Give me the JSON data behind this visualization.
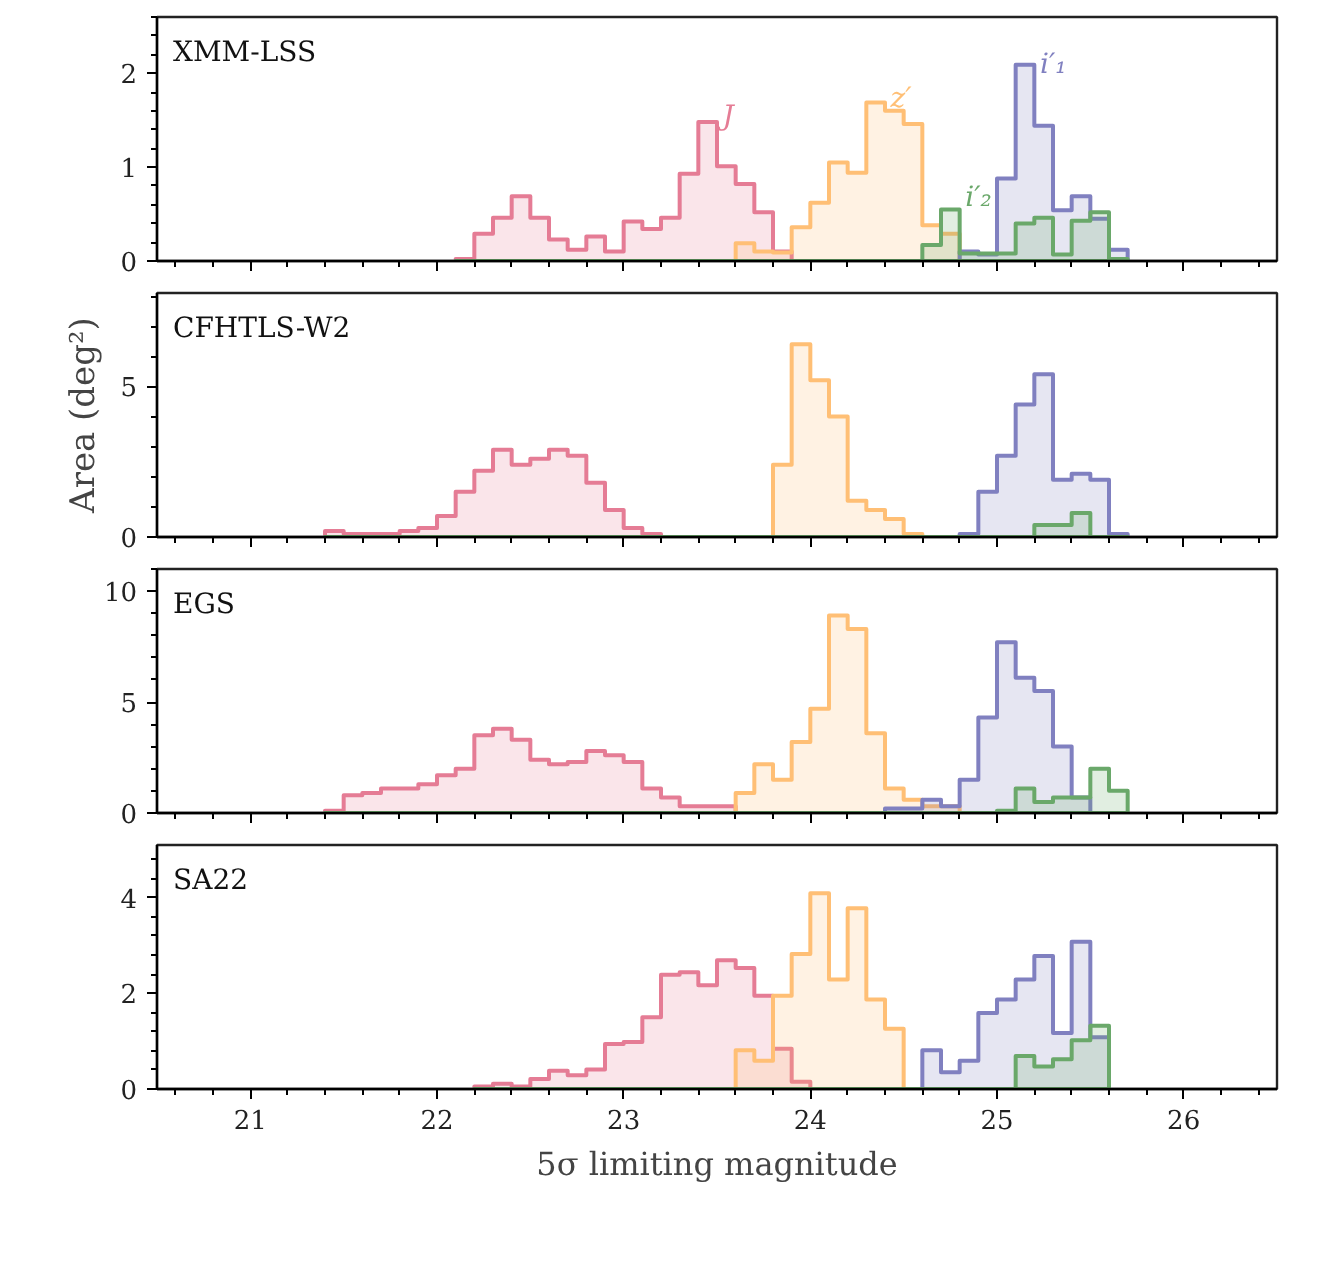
{
  "chart_data": [
    {
      "type": "histogram",
      "title": "XMM-LSS",
      "xlim": [
        20.5,
        26.5
      ],
      "xticks": [
        21,
        22,
        23,
        24,
        25,
        26
      ],
      "ylim": [
        0,
        2.6
      ],
      "yticks": [
        0,
        1,
        2
      ],
      "tick_labels": "y",
      "grid": false,
      "bins": [
        22.1,
        22.2,
        22.3,
        22.4,
        22.5,
        22.6,
        22.7,
        22.8,
        22.9,
        23.0,
        23.1,
        23.2,
        23.3,
        23.4,
        23.5,
        23.6,
        23.7,
        23.8,
        23.9,
        24.0,
        24.1,
        24.2,
        24.3,
        24.4,
        24.5,
        24.6,
        24.7,
        24.8,
        24.9,
        25.0,
        25.1,
        25.2,
        25.3,
        25.4,
        25.5,
        25.6,
        25.7
      ],
      "series": [
        {
          "name": "J",
          "color": "#e57c95",
          "values": [
            0.02,
            0.29,
            0.46,
            0.69,
            0.46,
            0.23,
            0.12,
            0.26,
            0.1,
            0.42,
            0.34,
            0.46,
            0.93,
            1.48,
            1.01,
            0.82,
            0.52,
            0.1,
            0,
            0,
            0,
            0,
            0,
            0,
            0,
            0,
            0,
            0,
            0,
            0,
            0,
            0,
            0,
            0,
            0,
            0
          ]
        },
        {
          "name": "z′",
          "color": "#ffbf75",
          "values": [
            0,
            0,
            0,
            0,
            0,
            0,
            0,
            0,
            0,
            0,
            0,
            0,
            0,
            0,
            0,
            0.19,
            0.1,
            0.09,
            0.36,
            0.62,
            1.05,
            0.94,
            1.69,
            1.6,
            1.46,
            0.38,
            0.29,
            0,
            0,
            0,
            0,
            0,
            0,
            0,
            0,
            0
          ]
        },
        {
          "name": "i′₁",
          "color": "#8080c0",
          "values": [
            0,
            0,
            0,
            0,
            0,
            0,
            0,
            0,
            0,
            0,
            0,
            0,
            0,
            0,
            0,
            0,
            0,
            0,
            0,
            0,
            0,
            0,
            0,
            0,
            0,
            0,
            0,
            0.1,
            0.07,
            0.88,
            2.09,
            1.44,
            0.54,
            0.69,
            0.45,
            0.12
          ]
        },
        {
          "name": "i′₂",
          "color": "#6aa86a",
          "values": [
            0,
            0,
            0,
            0,
            0,
            0,
            0,
            0,
            0,
            0,
            0,
            0,
            0,
            0,
            0,
            0,
            0,
            0,
            0,
            0,
            0,
            0,
            0,
            0,
            0,
            0.17,
            0.55,
            0.08,
            0.08,
            0.08,
            0.4,
            0.46,
            0.07,
            0.43,
            0.52,
            0.02
          ]
        }
      ]
    },
    {
      "type": "histogram",
      "title": "CFHTLS-W2",
      "xlim": [
        20.5,
        26.5
      ],
      "xticks": [
        21,
        22,
        23,
        24,
        25,
        26
      ],
      "ylim": [
        0,
        8.1
      ],
      "yticks": [
        0,
        5
      ],
      "tick_labels": "y",
      "grid": false,
      "ylabel": "Area (deg²)",
      "bins": [
        21.4,
        21.5,
        21.6,
        21.7,
        21.8,
        21.9,
        22.0,
        22.1,
        22.2,
        22.3,
        22.4,
        22.5,
        22.6,
        22.7,
        22.8,
        22.9,
        23.0,
        23.1,
        23.2,
        23.3,
        23.4,
        23.5,
        23.6,
        23.7,
        23.8,
        23.9,
        24.0,
        24.1,
        24.2,
        24.3,
        24.4,
        24.5,
        24.6,
        24.7,
        24.8,
        24.9,
        25.0,
        25.1,
        25.2,
        25.3,
        25.4,
        25.5,
        25.6,
        25.7
      ],
      "series": [
        {
          "color": "#e57c95",
          "values": [
            0.2,
            0.1,
            0.1,
            0.1,
            0.2,
            0.3,
            0.7,
            1.5,
            2.2,
            2.9,
            2.4,
            2.6,
            2.9,
            2.7,
            1.8,
            0.9,
            0.3,
            0.1,
            0,
            0,
            0,
            0,
            0,
            0,
            0,
            0,
            0,
            0,
            0,
            0,
            0,
            0,
            0,
            0,
            0,
            0,
            0,
            0,
            0,
            0,
            0,
            0,
            0
          ]
        },
        {
          "color": "#ffbf75",
          "values": [
            0,
            0,
            0,
            0,
            0,
            0,
            0,
            0,
            0,
            0,
            0,
            0,
            0,
            0,
            0,
            0,
            0,
            0,
            0,
            0,
            0,
            0,
            0,
            0,
            2.4,
            6.4,
            5.2,
            4.0,
            1.2,
            0.9,
            0.6,
            0.1,
            0,
            0,
            0,
            0,
            0,
            0,
            0,
            0,
            0,
            0,
            0
          ]
        },
        {
          "color": "#8080c0",
          "values": [
            0,
            0,
            0,
            0,
            0,
            0,
            0,
            0,
            0,
            0,
            0,
            0,
            0,
            0,
            0,
            0,
            0,
            0,
            0,
            0,
            0,
            0,
            0,
            0,
            0,
            0,
            0,
            0,
            0,
            0,
            0,
            0,
            0,
            0,
            0.1,
            1.5,
            2.7,
            4.4,
            5.4,
            1.9,
            2.1,
            1.9,
            0.1
          ]
        },
        {
          "color": "#6aa86a",
          "values": [
            0,
            0,
            0,
            0,
            0,
            0,
            0,
            0,
            0,
            0,
            0,
            0,
            0,
            0,
            0,
            0,
            0,
            0,
            0,
            0,
            0,
            0,
            0,
            0,
            0,
            0,
            0,
            0,
            0,
            0,
            0,
            0,
            0,
            0,
            0,
            0,
            0,
            0,
            0.4,
            0.4,
            0.8,
            0,
            0
          ]
        }
      ]
    },
    {
      "type": "histogram",
      "title": "EGS",
      "xlim": [
        20.5,
        26.5
      ],
      "xticks": [
        21,
        22,
        23,
        24,
        25,
        26
      ],
      "ylim": [
        0,
        11
      ],
      "yticks": [
        0,
        5,
        10
      ],
      "tick_labels": "y",
      "grid": false,
      "bins": [
        21.4,
        21.5,
        21.6,
        21.7,
        21.8,
        21.9,
        22.0,
        22.1,
        22.2,
        22.3,
        22.4,
        22.5,
        22.6,
        22.7,
        22.8,
        22.9,
        23.0,
        23.1,
        23.2,
        23.3,
        23.4,
        23.5,
        23.6,
        23.7,
        23.8,
        23.9,
        24.0,
        24.1,
        24.2,
        24.3,
        24.4,
        24.5,
        24.6,
        24.7,
        24.8,
        24.9,
        25.0,
        25.1,
        25.2,
        25.3,
        25.4,
        25.5,
        25.6,
        25.7
      ],
      "series": [
        {
          "color": "#e57c95",
          "values": [
            0.1,
            0.8,
            0.9,
            1.1,
            1.1,
            1.3,
            1.7,
            2.0,
            3.5,
            3.8,
            3.3,
            2.4,
            2.2,
            2.3,
            2.8,
            2.6,
            2.3,
            1.1,
            0.7,
            0.3,
            0.3,
            0.3,
            0,
            0,
            0,
            0,
            0,
            0,
            0,
            0,
            0,
            0,
            0,
            0,
            0,
            0,
            0,
            0,
            0,
            0,
            0,
            0,
            0
          ]
        },
        {
          "color": "#ffbf75",
          "values": [
            0,
            0,
            0,
            0,
            0,
            0,
            0,
            0,
            0,
            0,
            0,
            0,
            0,
            0,
            0,
            0,
            0,
            0,
            0,
            0,
            0,
            0,
            0.9,
            2.2,
            1.5,
            3.2,
            4.7,
            8.9,
            8.3,
            3.6,
            1.1,
            0.6,
            0.3,
            0.3,
            0,
            0,
            0,
            0,
            0,
            0,
            0,
            0,
            0
          ]
        },
        {
          "color": "#8080c0",
          "values": [
            0,
            0,
            0,
            0,
            0,
            0,
            0,
            0,
            0,
            0,
            0,
            0,
            0,
            0,
            0,
            0,
            0,
            0,
            0,
            0,
            0,
            0,
            0,
            0,
            0,
            0,
            0,
            0,
            0,
            0,
            0.2,
            0.2,
            0.6,
            0.3,
            1.5,
            4.3,
            7.7,
            6.1,
            5.5,
            3.0,
            0.7,
            0,
            0
          ]
        },
        {
          "color": "#6aa86a",
          "values": [
            0,
            0,
            0,
            0,
            0,
            0,
            0,
            0,
            0,
            0,
            0,
            0,
            0,
            0,
            0,
            0,
            0,
            0,
            0,
            0,
            0,
            0,
            0,
            0,
            0,
            0,
            0,
            0,
            0,
            0,
            0,
            0,
            0,
            0,
            0,
            0,
            0.1,
            1.1,
            0.5,
            0.7,
            0.7,
            2.0,
            1.0
          ]
        }
      ]
    },
    {
      "type": "histogram",
      "title": "SA22",
      "xlim": [
        20.5,
        26.5
      ],
      "xticks": [
        21,
        22,
        23,
        24,
        25,
        26
      ],
      "ylim": [
        0,
        5.1
      ],
      "yticks": [
        0,
        2,
        4
      ],
      "grid": false,
      "xlabel": "5σ limiting magnitude",
      "bins": [
        22.2,
        22.3,
        22.4,
        22.5,
        22.6,
        22.7,
        22.8,
        22.9,
        23.0,
        23.1,
        23.2,
        23.3,
        23.4,
        23.5,
        23.6,
        23.7,
        23.8,
        23.9,
        24.0,
        24.1,
        24.2,
        24.3,
        24.4,
        24.5,
        24.6,
        24.7,
        24.8,
        24.9,
        25.0,
        25.1,
        25.2,
        25.3,
        25.4,
        25.5,
        25.6
      ],
      "series": [
        {
          "color": "#e57c95",
          "values": [
            0.05,
            0.11,
            0.05,
            0.21,
            0.38,
            0.29,
            0.41,
            0.94,
            0.98,
            1.5,
            2.39,
            2.44,
            2.17,
            2.69,
            2.53,
            1.95,
            0.84,
            0.15,
            0,
            0,
            0,
            0,
            0,
            0,
            0,
            0,
            0,
            0,
            0,
            0,
            0,
            0,
            0,
            0
          ]
        },
        {
          "color": "#ffbf75",
          "values": [
            0,
            0,
            0,
            0,
            0,
            0,
            0,
            0,
            0,
            0,
            0,
            0,
            0,
            0,
            0.81,
            0.59,
            1.95,
            2.82,
            4.09,
            2.29,
            3.78,
            1.87,
            1.26,
            0,
            0,
            0,
            0,
            0,
            0,
            0,
            0,
            0,
            0,
            0
          ]
        },
        {
          "color": "#8080c0",
          "values": [
            0,
            0,
            0,
            0,
            0,
            0,
            0,
            0,
            0,
            0,
            0,
            0,
            0,
            0,
            0,
            0,
            0,
            0,
            0,
            0,
            0,
            0,
            0,
            0,
            0.81,
            0.35,
            0.59,
            1.59,
            1.87,
            2.29,
            2.78,
            1.17,
            3.08,
            1.08
          ]
        },
        {
          "color": "#6aa86a",
          "values": [
            0,
            0,
            0,
            0,
            0,
            0,
            0,
            0,
            0,
            0,
            0,
            0,
            0,
            0,
            0,
            0,
            0,
            0,
            0,
            0,
            0,
            0,
            0,
            0,
            0,
            0,
            0,
            0,
            0,
            0.69,
            0.47,
            0.62,
            1.02,
            1.32
          ]
        }
      ]
    }
  ]
}
